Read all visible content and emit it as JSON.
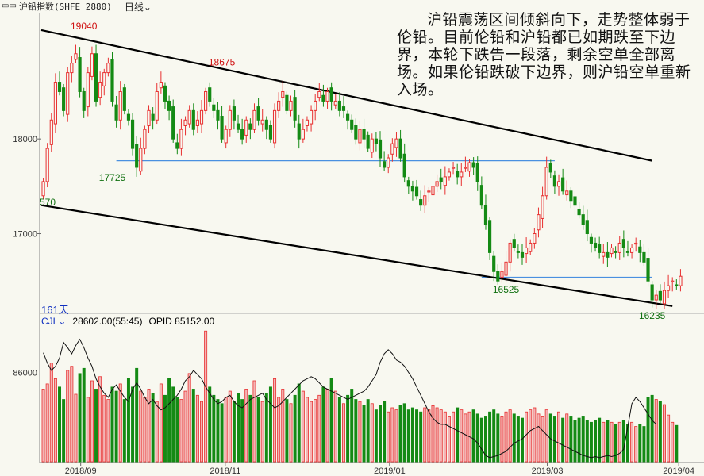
{
  "header": {
    "icon": "candlestick-chart-icon",
    "instrument": "沪铅指数(SHFE 2880)",
    "period": "日线"
  },
  "annotation_text": "沪铅震荡区间倾斜向下，走势整体弱于伦铅。目前伦铅和沪铅都已如期跌至下边界，本轮下跌告一段落，剩余空单全部离场。如果伦铅跌破下边界，则沪铅空单重新入场。",
  "price_panel": {
    "left_edge_label": "570",
    "days_label": "161天",
    "point_labels": [
      {
        "text": "19040",
        "color": "#d01010"
      },
      {
        "text": "18675",
        "color": "#d01010"
      },
      {
        "text": "17725",
        "color": "#107010"
      },
      {
        "text": "16525",
        "color": "#107010"
      },
      {
        "text": "16235",
        "color": "#107010"
      }
    ]
  },
  "volume_panel": {
    "indicator": "CJL",
    "value_text": "28602.00(55:45)",
    "opid_text": "OPID 85152.00"
  },
  "colors": {
    "up": "#e83030",
    "down": "#148a14",
    "up_vol_fill": "#f4b4b4",
    "trendline": "#000000",
    "support": "#4a90e0",
    "axis_text": "#333333"
  },
  "chart_data": [
    {
      "type": "candlestick",
      "title": "",
      "x_tick_labels": [
        "2018/09",
        "2018/11",
        "2019/01",
        "2019/03",
        "2019/04"
      ],
      "y_tick_labels": [
        "18000",
        "17000"
      ],
      "ylim": [
        16200,
        19300
      ],
      "annotations": [
        {
          "text": "19040",
          "value": 19040
        },
        {
          "text": "18675",
          "value": 18675
        },
        {
          "text": "17725",
          "value": 17725
        },
        {
          "text": "16525",
          "value": 16525
        },
        {
          "text": "16235",
          "value": 16235
        }
      ],
      "support_levels": [
        17770,
        16540
      ],
      "channel": {
        "upper": {
          "from": 19150,
          "to": 17770
        },
        "lower": {
          "from": 17300,
          "to": 16235
        }
      },
      "closes": [
        17550,
        17900,
        18200,
        18600,
        18500,
        18300,
        18700,
        18800,
        18900,
        18500,
        18300,
        18700,
        18900,
        18400,
        18600,
        18700,
        18800,
        18400,
        18200,
        18500,
        18300,
        18200,
        17900,
        17700,
        17900,
        18100,
        18300,
        18200,
        18500,
        18600,
        18400,
        18300,
        18000,
        17900,
        18100,
        18200,
        18300,
        18100,
        18200,
        18300,
        18500,
        18400,
        18300,
        18200,
        18000,
        18100,
        18300,
        18200,
        18100,
        18000,
        18200,
        18100,
        18300,
        18200,
        18200,
        18100,
        18000,
        18300,
        18400,
        18500,
        18300,
        18400,
        18200,
        18000,
        18100,
        18200,
        18300,
        18400,
        18500,
        18400,
        18500,
        18400,
        18400,
        18300,
        18300,
        18200,
        18100,
        18000,
        18100,
        18000,
        17900,
        18000,
        17950,
        17800,
        17700,
        17800,
        17950,
        18000,
        17800,
        17600,
        17500,
        17450,
        17400,
        17300,
        17400,
        17450,
        17500,
        17550,
        17550,
        17600,
        17650,
        17700,
        17600,
        17650,
        17700,
        17750,
        17700,
        17550,
        17300,
        17100,
        16800,
        16600,
        16500,
        16600,
        16700,
        16900,
        16850,
        16800,
        16750,
        16850,
        16900,
        17000,
        17200,
        17400,
        17700,
        17650,
        17500,
        17550,
        17450,
        17450,
        17350,
        17300,
        17200,
        17100,
        17000,
        16900,
        16850,
        16800,
        16800,
        16750,
        16850,
        16800,
        16900,
        16850,
        16800,
        16850,
        16900,
        16800,
        16700,
        16500,
        16300,
        16350,
        16300,
        16400,
        16450,
        16500,
        16450,
        16550
      ],
      "volume_ylim": [
        0,
        130000
      ],
      "volume_tick_labels": [
        "86000"
      ],
      "volume": [
        70000,
        75000,
        95000,
        80000,
        72000,
        60000,
        88000,
        92000,
        65000,
        85000,
        90000,
        62000,
        78000,
        70000,
        82000,
        64000,
        60000,
        72000,
        68000,
        75000,
        60000,
        80000,
        72000,
        90000,
        68000,
        62000,
        70000,
        66000,
        58000,
        75000,
        64000,
        80000,
        72000,
        62000,
        60000,
        68000,
        85000,
        70000,
        64000,
        58000,
        126000,
        72000,
        64000,
        60000,
        56000,
        62000,
        68000,
        58000,
        66000,
        60000,
        70000,
        64000,
        78000,
        62000,
        58000,
        66000,
        72000,
        80000,
        62000,
        70000,
        60000,
        56000,
        64000,
        75000,
        68000,
        62000,
        58000,
        60000,
        64000,
        72000,
        70000,
        80000,
        68000,
        62000,
        56000,
        64000,
        70000,
        60000,
        58000,
        54000,
        60000,
        56000,
        50000,
        54000,
        58000,
        48000,
        52000,
        50000,
        54000,
        56000,
        50000,
        52000,
        50000,
        48000,
        52000,
        50000,
        54000,
        52000,
        50000,
        48000,
        44000,
        48000,
        52000,
        50000,
        46000,
        48000,
        50000,
        46000,
        42000,
        44000,
        48000,
        50000,
        46000,
        44000,
        48000,
        50000,
        46000,
        44000,
        42000,
        48000,
        50000,
        52000,
        46000,
        44000,
        50000,
        46000,
        44000,
        48000,
        42000,
        46000,
        44000,
        40000,
        42000,
        44000,
        40000,
        38000,
        40000,
        42000,
        38000,
        40000,
        38000,
        36000,
        38000,
        40000,
        36000,
        38000,
        34000,
        36000,
        34000,
        62000,
        64000,
        60000,
        58000,
        55000,
        45000,
        38000,
        35000
      ],
      "opid_line": [
        105000,
        95000,
        88000,
        92000,
        100000,
        115000,
        110000,
        104000,
        112000,
        118000,
        110000,
        100000,
        92000,
        80000,
        72000,
        66000,
        62000,
        70000,
        74000,
        68000,
        62000,
        58000,
        70000,
        76000,
        70000,
        62000,
        56000,
        60000,
        54000,
        50000,
        52000,
        56000,
        60000,
        64000,
        70000,
        78000,
        82000,
        88000,
        84000,
        80000,
        72000,
        66000,
        60000,
        56000,
        58000,
        62000,
        64000,
        58000,
        54000,
        52000,
        56000,
        60000,
        62000,
        64000,
        66000,
        60000,
        56000,
        52000,
        54000,
        58000,
        62000,
        66000,
        70000,
        74000,
        78000,
        80000,
        82000,
        80000,
        76000,
        72000,
        70000,
        68000,
        66000,
        64000,
        62000,
        60000,
        62000,
        64000,
        66000,
        68000,
        72000,
        78000,
        84000,
        96000,
        104000,
        108000,
        104000,
        98000,
        96000,
        92000,
        86000,
        80000,
        72000,
        64000,
        56000,
        48000,
        42000,
        38000,
        36000,
        36000,
        34000,
        32000,
        30000,
        28000,
        26000,
        24000,
        22000,
        18000,
        12000,
        6000,
        4000,
        5000,
        6000,
        8000,
        10000,
        14000,
        18000,
        20000,
        22000,
        26000,
        30000,
        32000,
        34000,
        30000,
        26000,
        22000,
        20000,
        18000,
        16000,
        14000,
        12000,
        10000,
        8000,
        6000,
        5000,
        4000,
        5000,
        4000,
        5000,
        6000,
        5000,
        6000,
        8000,
        12000,
        34000,
        56000,
        62000,
        58000,
        52000,
        46000,
        40000,
        36000
      ]
    }
  ]
}
